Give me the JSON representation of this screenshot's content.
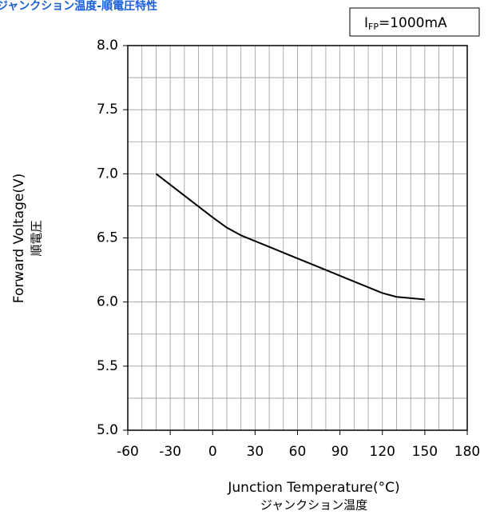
{
  "chart_data": {
    "type": "line",
    "title": "ジャンクション温度-順電圧特性",
    "annotation": {
      "main": "I",
      "sub": "FP",
      "rest": "=1000mA"
    },
    "x_label": [
      "Junction Temperature(°C)",
      "ジャンクション温度"
    ],
    "y_label": [
      "Forward Voltage(V)",
      "順電圧"
    ],
    "x": [
      -40,
      -20,
      0,
      10,
      20,
      40,
      60,
      80,
      100,
      120,
      130,
      150
    ],
    "series": [
      {
        "color": "#000000",
        "values": [
          7.0,
          6.83,
          6.66,
          6.58,
          6.52,
          6.43,
          6.34,
          6.25,
          6.16,
          6.07,
          6.04,
          6.02
        ]
      }
    ],
    "xlim": [
      -60,
      180
    ],
    "xticks": [
      -60,
      -30,
      0,
      30,
      60,
      90,
      120,
      150,
      180
    ],
    "ylim": [
      5.0,
      8.0
    ],
    "yticks": [
      {
        "value": 5.0,
        "label": "5.0"
      },
      5.5,
      {
        "value": 6.0,
        "label": "6.0"
      },
      6.5,
      {
        "value": 7.0,
        "label": "7.0"
      },
      7.5,
      {
        "value": 8.0,
        "label": "8.0"
      }
    ],
    "grid": true
  }
}
